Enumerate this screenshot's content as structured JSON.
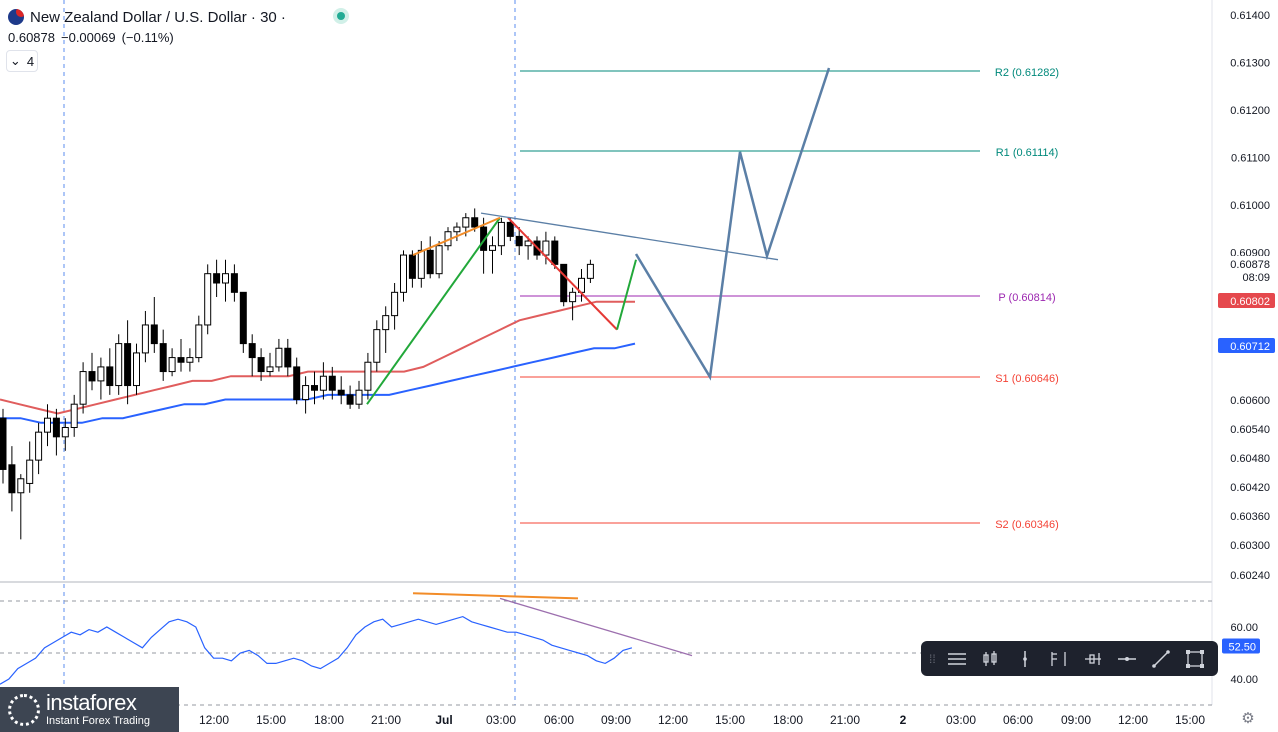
{
  "header": {
    "symbol_title": "New Zealand Dollar / U.S. Dollar · 30 ·",
    "last_price": "0.60878",
    "change": "−0.00069",
    "change_pct": "(−0.11%)",
    "indicators_count": "4"
  },
  "toolbar": {
    "buttons": [
      "settings-lines",
      "bars",
      "vertical-line",
      "timeline",
      "price-range",
      "horizontal-line",
      "trend-line",
      "select-rectangle"
    ]
  },
  "watermark": {
    "name": "instaforex",
    "tagline": "Instant Forex Trading"
  },
  "colors": {
    "up": "#ffffff",
    "down": "#000000",
    "ema_fast": "#e05d5d",
    "ema_slow": "#2962ff",
    "pivot": "#9c27b0",
    "r_levels": "#00897b",
    "s_levels": "#f44336",
    "projection": "#5b7fa6"
  },
  "chart_data": {
    "type": "candlestick",
    "price_ticks": [
      "0.61400",
      "0.61300",
      "0.61200",
      "0.61100",
      "0.61000",
      "0.60900",
      "0.60600",
      "0.60540",
      "0.60480",
      "0.60420",
      "0.60360",
      "0.60300",
      "0.60240"
    ],
    "price_range": [
      0.6022,
      0.6143
    ],
    "time_labels": [
      "12:00",
      "15:00",
      "18:00",
      "21:00",
      "Jul",
      "03:00",
      "06:00",
      "09:00",
      "12:00",
      "15:00",
      "18:00",
      "21:00",
      "2",
      "03:00",
      "06:00",
      "09:00",
      "12:00",
      "15:00"
    ],
    "current_price": {
      "value": "0.60878",
      "countdown": "08:09"
    },
    "ema_fast_badge": "0.60802",
    "ema_slow_badge": "0.60712",
    "pivots": [
      {
        "name": "R2",
        "label": "R2 (0.61282)",
        "value": 0.61282
      },
      {
        "name": "R1",
        "label": "R1 (0.61114)",
        "value": 0.61114
      },
      {
        "name": "P",
        "label": "P (0.60814)",
        "value": 0.60814
      },
      {
        "name": "S1",
        "label": "S1 (0.60646)",
        "value": 0.60646
      },
      {
        "name": "S2",
        "label": "S2 (0.60346)",
        "value": 0.60346
      }
    ],
    "candles": [
      {
        "o": 0.6055,
        "h": 0.6057,
        "l": 0.6041,
        "c": 0.6044
      },
      {
        "o": 0.6045,
        "h": 0.6049,
        "l": 0.6035,
        "c": 0.6039
      },
      {
        "o": 0.6039,
        "h": 0.6043,
        "l": 0.6029,
        "c": 0.6042
      },
      {
        "o": 0.6041,
        "h": 0.605,
        "l": 0.6039,
        "c": 0.6046
      },
      {
        "o": 0.6046,
        "h": 0.6054,
        "l": 0.6043,
        "c": 0.6052
      },
      {
        "o": 0.6052,
        "h": 0.6058,
        "l": 0.6049,
        "c": 0.6055
      },
      {
        "o": 0.6055,
        "h": 0.6057,
        "l": 0.6047,
        "c": 0.6051
      },
      {
        "o": 0.6051,
        "h": 0.6055,
        "l": 0.6048,
        "c": 0.6053
      },
      {
        "o": 0.6053,
        "h": 0.606,
        "l": 0.6051,
        "c": 0.6058
      },
      {
        "o": 0.6058,
        "h": 0.6067,
        "l": 0.6056,
        "c": 0.6065
      },
      {
        "o": 0.6065,
        "h": 0.6069,
        "l": 0.6061,
        "c": 0.6063
      },
      {
        "o": 0.6063,
        "h": 0.6068,
        "l": 0.6059,
        "c": 0.6066
      },
      {
        "o": 0.6066,
        "h": 0.607,
        "l": 0.606,
        "c": 0.6062
      },
      {
        "o": 0.6062,
        "h": 0.6073,
        "l": 0.606,
        "c": 0.6071
      },
      {
        "o": 0.6071,
        "h": 0.6076,
        "l": 0.6058,
        "c": 0.6062
      },
      {
        "o": 0.6062,
        "h": 0.6071,
        "l": 0.606,
        "c": 0.6069
      },
      {
        "o": 0.6069,
        "h": 0.6078,
        "l": 0.6067,
        "c": 0.6075
      },
      {
        "o": 0.6075,
        "h": 0.6081,
        "l": 0.6069,
        "c": 0.6071
      },
      {
        "o": 0.6071,
        "h": 0.6074,
        "l": 0.6063,
        "c": 0.6065
      },
      {
        "o": 0.6065,
        "h": 0.607,
        "l": 0.6064,
        "c": 0.6068
      },
      {
        "o": 0.6068,
        "h": 0.6072,
        "l": 0.6065,
        "c": 0.6067
      },
      {
        "o": 0.6067,
        "h": 0.607,
        "l": 0.6065,
        "c": 0.6068
      },
      {
        "o": 0.6068,
        "h": 0.6077,
        "l": 0.6067,
        "c": 0.6075
      },
      {
        "o": 0.6075,
        "h": 0.6088,
        "l": 0.6073,
        "c": 0.6086
      },
      {
        "o": 0.6086,
        "h": 0.6089,
        "l": 0.6081,
        "c": 0.6084
      },
      {
        "o": 0.6084,
        "h": 0.6089,
        "l": 0.608,
        "c": 0.6086
      },
      {
        "o": 0.6086,
        "h": 0.6088,
        "l": 0.608,
        "c": 0.6082
      },
      {
        "o": 0.6082,
        "h": 0.6082,
        "l": 0.6069,
        "c": 0.6071
      },
      {
        "o": 0.6071,
        "h": 0.6073,
        "l": 0.6064,
        "c": 0.6068
      },
      {
        "o": 0.6068,
        "h": 0.607,
        "l": 0.6063,
        "c": 0.6065
      },
      {
        "o": 0.6065,
        "h": 0.6069,
        "l": 0.6064,
        "c": 0.6066
      },
      {
        "o": 0.6066,
        "h": 0.6072,
        "l": 0.6065,
        "c": 0.607
      },
      {
        "o": 0.607,
        "h": 0.6072,
        "l": 0.6064,
        "c": 0.6066
      },
      {
        "o": 0.6066,
        "h": 0.6068,
        "l": 0.6058,
        "c": 0.6059
      },
      {
        "o": 0.6059,
        "h": 0.6064,
        "l": 0.6056,
        "c": 0.6062
      },
      {
        "o": 0.6062,
        "h": 0.6065,
        "l": 0.6058,
        "c": 0.6061
      },
      {
        "o": 0.6061,
        "h": 0.6067,
        "l": 0.6059,
        "c": 0.6064
      },
      {
        "o": 0.6064,
        "h": 0.6066,
        "l": 0.6059,
        "c": 0.6061
      },
      {
        "o": 0.6061,
        "h": 0.6064,
        "l": 0.6058,
        "c": 0.606
      },
      {
        "o": 0.606,
        "h": 0.6062,
        "l": 0.6057,
        "c": 0.6058
      },
      {
        "o": 0.6058,
        "h": 0.6063,
        "l": 0.6057,
        "c": 0.6061
      },
      {
        "o": 0.6061,
        "h": 0.6069,
        "l": 0.6059,
        "c": 0.6067
      },
      {
        "o": 0.6067,
        "h": 0.6076,
        "l": 0.6065,
        "c": 0.6074
      },
      {
        "o": 0.6074,
        "h": 0.6079,
        "l": 0.6069,
        "c": 0.6077
      },
      {
        "o": 0.6077,
        "h": 0.6084,
        "l": 0.6074,
        "c": 0.6082
      },
      {
        "o": 0.6082,
        "h": 0.6091,
        "l": 0.608,
        "c": 0.609
      },
      {
        "o": 0.609,
        "h": 0.6091,
        "l": 0.6083,
        "c": 0.6085
      },
      {
        "o": 0.6085,
        "h": 0.6093,
        "l": 0.6083,
        "c": 0.6091
      },
      {
        "o": 0.6091,
        "h": 0.6094,
        "l": 0.6085,
        "c": 0.6086
      },
      {
        "o": 0.6086,
        "h": 0.6093,
        "l": 0.6085,
        "c": 0.6092
      },
      {
        "o": 0.6092,
        "h": 0.6096,
        "l": 0.6091,
        "c": 0.6095
      },
      {
        "o": 0.6095,
        "h": 0.6097,
        "l": 0.6093,
        "c": 0.6096
      },
      {
        "o": 0.6096,
        "h": 0.6099,
        "l": 0.6094,
        "c": 0.6098
      },
      {
        "o": 0.6098,
        "h": 0.61,
        "l": 0.6095,
        "c": 0.6096
      },
      {
        "o": 0.6096,
        "h": 0.6098,
        "l": 0.6086,
        "c": 0.6091
      },
      {
        "o": 0.6091,
        "h": 0.6094,
        "l": 0.6086,
        "c": 0.6092
      },
      {
        "o": 0.6092,
        "h": 0.6098,
        "l": 0.609,
        "c": 0.6097
      },
      {
        "o": 0.6097,
        "h": 0.6098,
        "l": 0.6093,
        "c": 0.6094
      },
      {
        "o": 0.6094,
        "h": 0.6096,
        "l": 0.609,
        "c": 0.6092
      },
      {
        "o": 0.6092,
        "h": 0.6094,
        "l": 0.6089,
        "c": 0.6093
      },
      {
        "o": 0.6093,
        "h": 0.6094,
        "l": 0.6089,
        "c": 0.609
      },
      {
        "o": 0.609,
        "h": 0.6095,
        "l": 0.6088,
        "c": 0.6093
      },
      {
        "o": 0.6093,
        "h": 0.6094,
        "l": 0.6087,
        "c": 0.6088
      },
      {
        "o": 0.6088,
        "h": 0.6088,
        "l": 0.6079,
        "c": 0.608
      },
      {
        "o": 0.608,
        "h": 0.6083,
        "l": 0.6076,
        "c": 0.6082
      },
      {
        "o": 0.6082,
        "h": 0.6087,
        "l": 0.608,
        "c": 0.6085
      },
      {
        "o": 0.6085,
        "h": 0.6089,
        "l": 0.6084,
        "c": 0.6088
      }
    ],
    "ema_fast": [
      0.6059,
      0.6058,
      0.6057,
      0.6056,
      0.6057,
      0.6058,
      0.6059,
      0.606,
      0.6061,
      0.6062,
      0.6063,
      0.6063,
      0.6064,
      0.6064,
      0.6064,
      0.6064,
      0.6065,
      0.6065,
      0.6065,
      0.6065,
      0.6065,
      0.6065,
      0.6066,
      0.6068,
      0.607,
      0.6072,
      0.6074,
      0.6076,
      0.6077,
      0.6078,
      0.6079,
      0.608,
      0.608,
      0.608
    ],
    "ema_slow": [
      0.6055,
      0.6055,
      0.6054,
      0.6054,
      0.6054,
      0.6055,
      0.6055,
      0.6056,
      0.6057,
      0.6058,
      0.6058,
      0.6059,
      0.6059,
      0.6059,
      0.6059,
      0.6059,
      0.606,
      0.606,
      0.606,
      0.606,
      0.6061,
      0.6062,
      0.6063,
      0.6064,
      0.6065,
      0.6066,
      0.6067,
      0.6068,
      0.6069,
      0.607,
      0.607,
      0.6071
    ],
    "rsi": {
      "ticks": [
        "60.00",
        "40.00"
      ],
      "badge": "52.50",
      "range": [
        30,
        75
      ],
      "values": [
        38,
        40,
        44,
        46,
        48,
        52,
        54,
        56,
        58,
        57,
        59,
        58,
        60,
        58,
        56,
        54,
        52,
        56,
        59,
        62,
        63,
        62,
        60,
        52,
        48,
        48,
        47,
        50,
        51,
        49,
        46,
        46,
        47,
        48,
        47,
        45,
        44,
        46,
        48,
        52,
        57,
        60,
        62,
        63,
        60,
        61,
        62,
        63,
        62,
        61,
        62,
        63,
        64,
        62,
        61,
        60,
        59,
        58,
        58,
        57,
        56,
        55,
        53,
        52,
        51,
        50,
        49,
        47,
        46,
        48,
        51,
        52
      ],
      "current": 52.5
    },
    "annotations": {
      "projection_path": [
        [
          0.6089,
          0
        ],
        [
          0.6065,
          1
        ],
        [
          0.6111,
          2
        ],
        [
          0.6089,
          3
        ],
        [
          0.6128,
          4
        ]
      ],
      "impulse_up": [
        0.6058,
        0.6098
      ],
      "correction_down": [
        0.6098,
        0.6074
      ],
      "resistance_trend": [
        0.6099,
        0.6089
      ],
      "top_divergence": [
        0.6089,
        0.6098
      ]
    }
  }
}
